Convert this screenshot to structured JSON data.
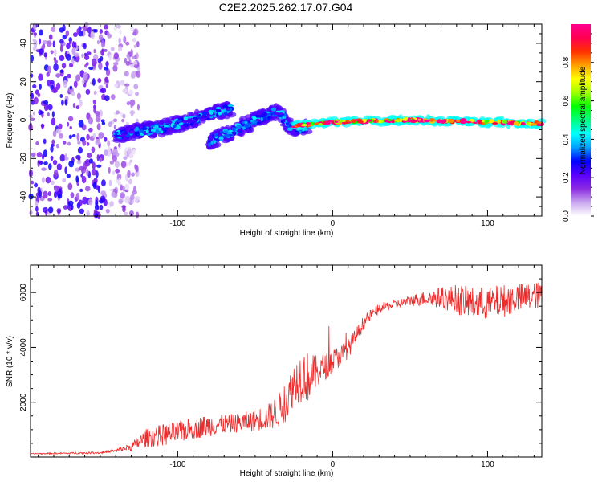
{
  "title": "C2E2.2025.262.17.07.G04",
  "chart_data": [
    {
      "type": "heatmap",
      "title": "C2E2.2025.262.17.07.G04",
      "xlabel": "Height of straight line (km)",
      "ylabel": "Frequency (Hz)",
      "xlim": [
        -195,
        135
      ],
      "ylim": [
        -50,
        50
      ],
      "xticks": [
        -100,
        0,
        100
      ],
      "yticks": [
        -40,
        -20,
        0,
        20,
        40
      ],
      "colorbar": {
        "label": "Normalized spectral amplitude",
        "range": [
          0,
          1
        ],
        "ticks": [
          0.0,
          0.2,
          0.4,
          0.6,
          0.8
        ],
        "colormap": [
          "#ffffff",
          "#c9a7ef",
          "#8b2be2",
          "#5a00ff",
          "#0000ff",
          "#00a0ff",
          "#00ffff",
          "#00ff80",
          "#00ff00",
          "#a0ff00",
          "#ffff00",
          "#ffa000",
          "#ff3000",
          "#ff0050",
          "#ff0090"
        ]
      },
      "structures": [
        {
          "name": "noise",
          "x": [
            -195,
            -125
          ],
          "y": [
            -50,
            50
          ],
          "amplitude": 0.15
        },
        {
          "name": "upper track",
          "points": [
            [
              -140,
              -8
            ],
            [
              -110,
              -4
            ],
            [
              -90,
              0
            ],
            [
              -75,
              4
            ],
            [
              -65,
              6
            ]
          ],
          "amplitude": 0.35
        },
        {
          "name": "lower track",
          "points": [
            [
              -80,
              -11
            ],
            [
              -65,
              -6
            ],
            [
              -50,
              0
            ],
            [
              -40,
              3
            ],
            [
              -35,
              5
            ],
            [
              -28,
              -3
            ],
            [
              -22,
              -5
            ],
            [
              -15,
              -3
            ]
          ],
          "amplitude": 0.35
        },
        {
          "name": "flat signal",
          "points": [
            [
              -25,
              -3
            ],
            [
              0,
              -1
            ],
            [
              50,
              0
            ],
            [
              100,
              -1
            ],
            [
              135,
              -2
            ]
          ],
          "amplitude": 0.95
        }
      ]
    },
    {
      "type": "line",
      "xlabel": "Height of straight line (km)",
      "ylabel": "SNR (10 * v/v)",
      "xlim": [
        -195,
        135
      ],
      "ylim": [
        0,
        7000
      ],
      "xticks": [
        -100,
        0,
        100
      ],
      "yticks": [
        2000,
        4000,
        6000
      ],
      "series": [
        {
          "name": "SNR",
          "color": "#ee2a2a",
          "x": [
            -195,
            -170,
            -150,
            -140,
            -130,
            -120,
            -110,
            -100,
            -90,
            -80,
            -70,
            -60,
            -50,
            -40,
            -35,
            -30,
            -25,
            -20,
            -15,
            -10,
            -5,
            0,
            5,
            10,
            15,
            20,
            25,
            30,
            35,
            40,
            50,
            60,
            70,
            80,
            90,
            100,
            110,
            120,
            135
          ],
          "y": [
            120,
            140,
            160,
            230,
            380,
            700,
            800,
            900,
            1050,
            1150,
            1200,
            1250,
            1350,
            1500,
            1700,
            2000,
            2700,
            3000,
            2900,
            3100,
            3300,
            3500,
            3700,
            3950,
            4400,
            4900,
            5200,
            5400,
            5500,
            5550,
            5700,
            5800,
            5800,
            5750,
            5600,
            5600,
            5700,
            5800,
            5900
          ],
          "noise": [
            20,
            30,
            40,
            60,
            150,
            350,
            400,
            400,
            400,
            400,
            350,
            350,
            400,
            500,
            650,
            700,
            800,
            1000,
            900,
            600,
            500,
            450,
            400,
            350,
            300,
            250,
            200,
            180,
            170,
            170,
            200,
            280,
            400,
            550,
            600,
            600,
            600,
            550,
            500
          ]
        }
      ]
    }
  ]
}
